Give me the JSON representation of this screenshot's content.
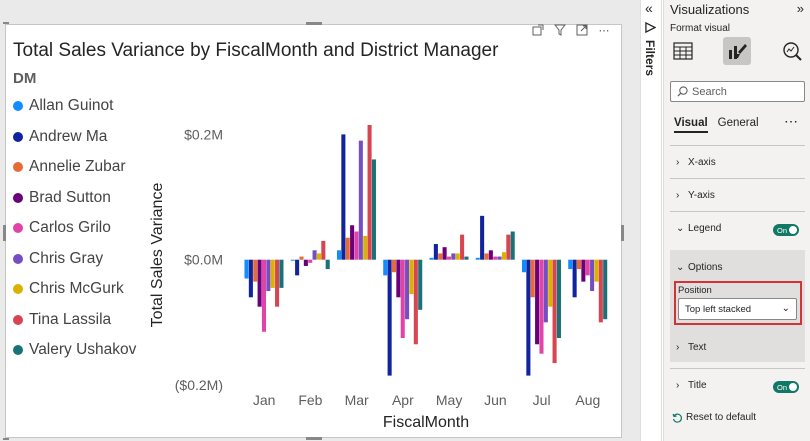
{
  "visual": {
    "title": "Total Sales Variance by FiscalMonth and District Manager",
    "legend_title": "DM"
  },
  "chart_data": {
    "type": "bar",
    "title": "Total Sales Variance by FiscalMonth and District Manager",
    "xlabel": "FiscalMonth",
    "ylabel": "Total Sales Variance",
    "categories": [
      "Jan",
      "Feb",
      "Mar",
      "Apr",
      "May",
      "Jun",
      "Jul",
      "Aug"
    ],
    "yticks": [
      {
        "value": 200000,
        "label": "$0.2M"
      },
      {
        "value": 0,
        "label": "$0.0M"
      },
      {
        "value": -200000,
        "label": "($0.2M)"
      }
    ],
    "ylim": [
      -200000,
      215000
    ],
    "legend_position": "top-left",
    "grid": false,
    "series": [
      {
        "name": "Allan Guinot",
        "color": "#118DFF",
        "values": [
          -30000,
          0,
          15000,
          -25000,
          3000,
          3000,
          -20000,
          -15000
        ]
      },
      {
        "name": "Andrew Ma",
        "color": "#12239E",
        "values": [
          -60000,
          -25000,
          200000,
          -185000,
          25000,
          70000,
          -185000,
          -60000
        ]
      },
      {
        "name": "Annelie Zubar",
        "color": "#E66C37",
        "values": [
          -35000,
          5000,
          35000,
          -20000,
          10000,
          10000,
          -60000,
          -15000
        ]
      },
      {
        "name": "Brad Sutton",
        "color": "#6B007B",
        "values": [
          -75000,
          -10000,
          55000,
          -60000,
          20000,
          15000,
          -135000,
          -35000
        ]
      },
      {
        "name": "Carlos Grilo",
        "color": "#E044A7",
        "values": [
          -115000,
          -5000,
          45000,
          -125000,
          5000,
          5000,
          -150000,
          -25000
        ]
      },
      {
        "name": "Chris Gray",
        "color": "#744EC2",
        "values": [
          -50000,
          15000,
          190000,
          -95000,
          10000,
          5000,
          -100000,
          -50000
        ]
      },
      {
        "name": "Chris McGurk",
        "color": "#D9B300",
        "values": [
          -45000,
          10000,
          38000,
          -55000,
          10000,
          12000,
          -75000,
          -35000
        ]
      },
      {
        "name": "Tina Lassila",
        "color": "#D64550",
        "values": [
          -75000,
          30000,
          215000,
          -135000,
          40000,
          40000,
          -165000,
          -100000
        ]
      },
      {
        "name": "Valery Ushakov",
        "color": "#197278",
        "values": [
          -45000,
          -15000,
          160000,
          -80000,
          5000,
          45000,
          -125000,
          -95000
        ]
      }
    ]
  },
  "filters": {
    "label": "Filters"
  },
  "viz_pane": {
    "title": "Visualizations",
    "format_visual_label": "Format visual",
    "search_placeholder": "Search",
    "tabs": {
      "visual": "Visual",
      "general": "General"
    },
    "sections": {
      "x_axis": "X-axis",
      "y_axis": "Y-axis",
      "legend": "Legend",
      "options": "Options",
      "text": "Text",
      "title": "Title"
    },
    "toggle_on": "On",
    "position_label": "Position",
    "position_value": "Top left stacked",
    "reset_label": "Reset to default"
  }
}
